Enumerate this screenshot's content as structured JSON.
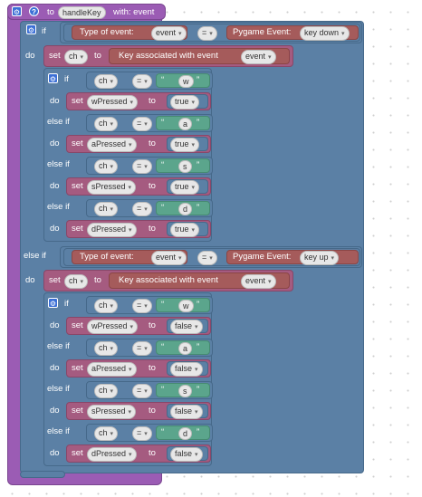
{
  "procedure": {
    "to_label": "to",
    "name": "handleKey",
    "with_label": "with: event"
  },
  "labels": {
    "if": "if",
    "do": "do",
    "else_if": "else if",
    "set": "set",
    "to": "to",
    "eq": "=",
    "type_of_event": "Type of event:",
    "pygame_event": "Pygame Event:",
    "key_assoc": "Key associated with event",
    "quote_open": "“",
    "quote_close": "”"
  },
  "variables": {
    "event": "event",
    "ch": "ch"
  },
  "branches": [
    {
      "condition_value": "key down",
      "cases": [
        {
          "key": "w",
          "var": "wPressed",
          "value": "true"
        },
        {
          "key": "a",
          "var": "aPressed",
          "value": "true"
        },
        {
          "key": "s",
          "var": "sPressed",
          "value": "true"
        },
        {
          "key": "d",
          "var": "dPressed",
          "value": "true"
        }
      ]
    },
    {
      "condition_value": "key up",
      "cases": [
        {
          "key": "w",
          "var": "wPressed",
          "value": "false"
        },
        {
          "key": "a",
          "var": "aPressed",
          "value": "false"
        },
        {
          "key": "s",
          "var": "sPressed",
          "value": "false"
        },
        {
          "key": "d",
          "var": "dPressed",
          "value": "false"
        }
      ]
    }
  ],
  "icons": {
    "gear": "gear-icon",
    "help": "help-icon",
    "dropdown": "chevron-down-icon"
  },
  "colors": {
    "procedure": "#9b5cb4",
    "logic": "#5b80a5",
    "variables": "#a55b80",
    "text": "#5ba58c",
    "event": "#a55b5b",
    "canvas_dot": "#cfcfcf"
  }
}
